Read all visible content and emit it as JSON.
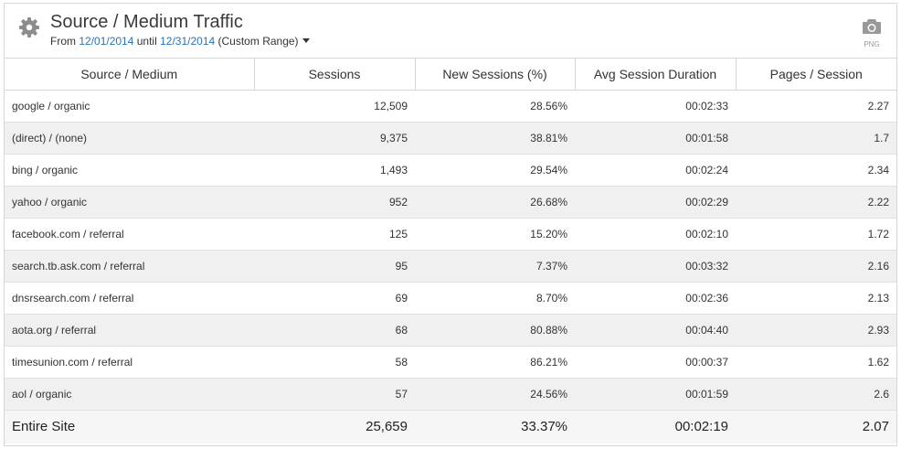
{
  "widget": {
    "title": "Source / Medium Traffic",
    "date_prefix": "From",
    "start_date": "12/01/2014",
    "until_word": "until",
    "end_date": "12/31/2014",
    "range_label": "(Custom Range)",
    "export_label": "PNG",
    "icons": {
      "settings": "gear-icon",
      "export": "camera-icon",
      "range_dropdown": "caret-down-icon"
    },
    "colors": {
      "link": "#2a72b5",
      "row_alt": "#f0f0f0"
    }
  },
  "table": {
    "columns": [
      "Source / Medium",
      "Sessions",
      "New Sessions (%)",
      "Avg Session Duration",
      "Pages / Session"
    ],
    "rows": [
      [
        "google / organic",
        "12,509",
        "28.56%",
        "00:02:33",
        "2.27"
      ],
      [
        "(direct) / (none)",
        "9,375",
        "38.81%",
        "00:01:58",
        "1.7"
      ],
      [
        "bing / organic",
        "1,493",
        "29.54%",
        "00:02:24",
        "2.34"
      ],
      [
        "yahoo / organic",
        "952",
        "26.68%",
        "00:02:29",
        "2.22"
      ],
      [
        "facebook.com / referral",
        "125",
        "15.20%",
        "00:02:10",
        "1.72"
      ],
      [
        "search.tb.ask.com / referral",
        "95",
        "7.37%",
        "00:03:32",
        "2.16"
      ],
      [
        "dnsrsearch.com / referral",
        "69",
        "8.70%",
        "00:02:36",
        "2.13"
      ],
      [
        "aota.org / referral",
        "68",
        "80.88%",
        "00:04:40",
        "2.93"
      ],
      [
        "timesunion.com / referral",
        "58",
        "86.21%",
        "00:00:37",
        "1.62"
      ],
      [
        "aol / organic",
        "57",
        "24.56%",
        "00:01:59",
        "2.6"
      ]
    ],
    "total": [
      "Entire Site",
      "25,659",
      "33.37%",
      "00:02:19",
      "2.07"
    ]
  }
}
